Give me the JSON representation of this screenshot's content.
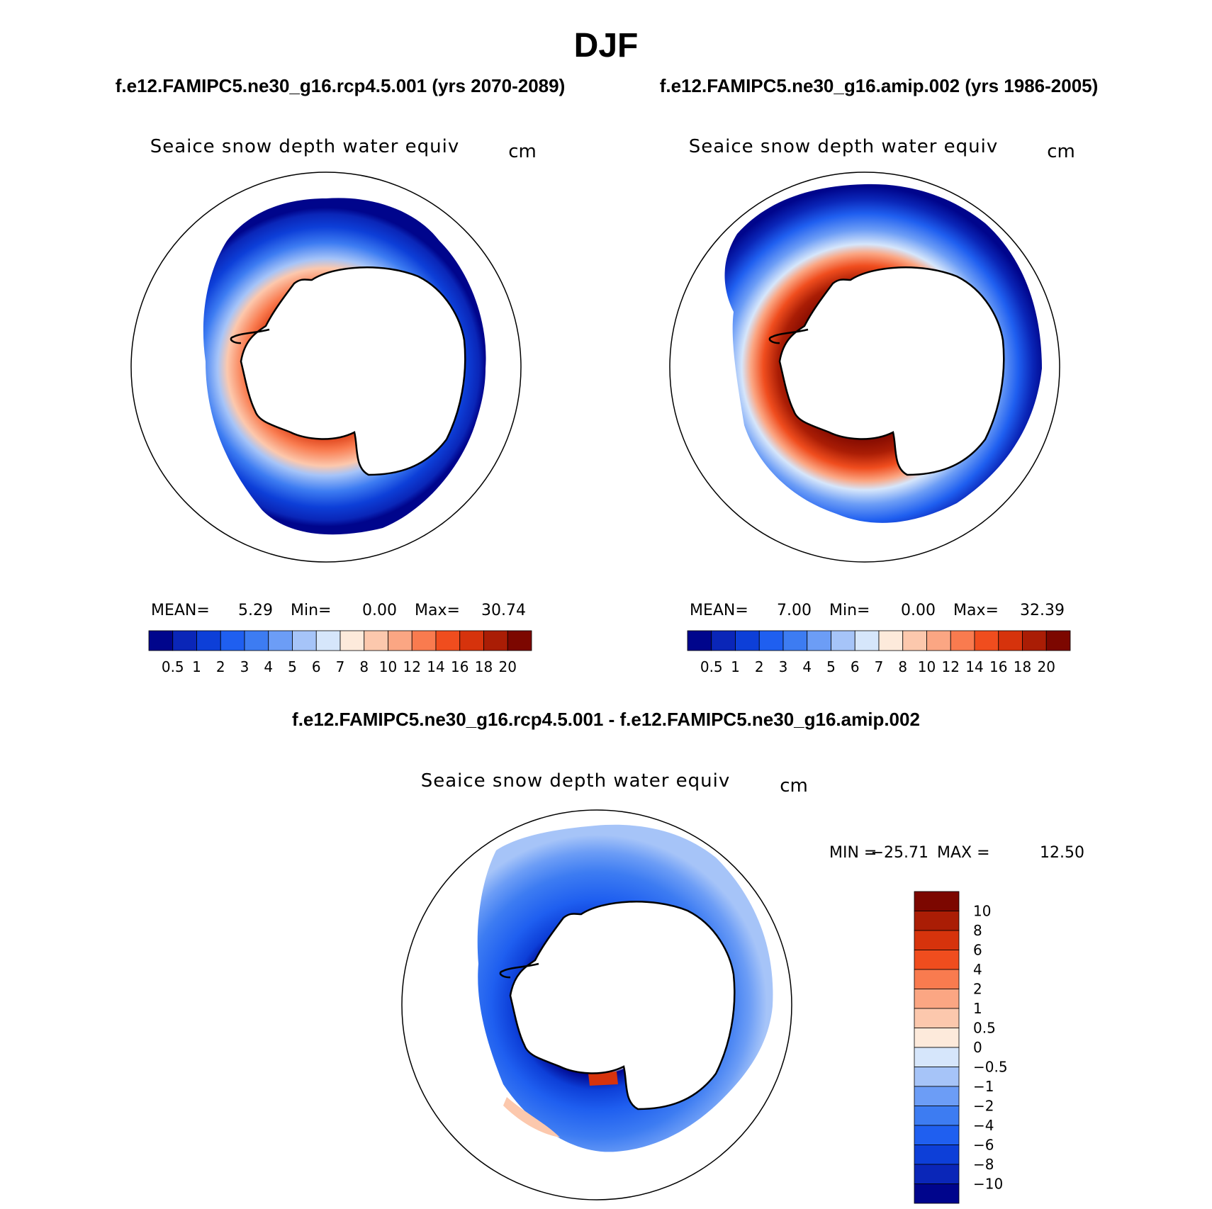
{
  "figure": {
    "title": "DJF",
    "subtitle_left": "f.e12.FAMIPC5.ne30_g16.rcp4.5.001 (yrs 2070-2089)",
    "subtitle_right": "f.e12.FAMIPC5.ne30_g16.amip.002 (yrs 1986-2005)",
    "diff_title": "f.e12.FAMIPC5.ne30_g16.rcp4.5.001 - f.e12.FAMIPC5.ne30_g16.amip.002"
  },
  "chart_data": [
    {
      "type": "heatmap",
      "projection": "south-polar-stereographic",
      "title": "Seaice snow depth water equiv",
      "units": "cm",
      "stats": {
        "mean_label": "MEAN=",
        "mean": "5.29",
        "min_label": "Min=",
        "min": "0.00",
        "max_label": "Max=",
        "max": "30.74"
      },
      "colorbar": {
        "orientation": "horizontal",
        "levels": [
          "0.5",
          "1",
          "2",
          "3",
          "4",
          "5",
          "6",
          "7",
          "8",
          "10",
          "12",
          "14",
          "16",
          "18",
          "20"
        ],
        "colors": [
          "#00058c",
          "#0a26b8",
          "#0d3fd8",
          "#1f5ff0",
          "#3d7cf2",
          "#6c9df6",
          "#a6c4f8",
          "#d6e6fb",
          "#fdeadb",
          "#fcc8ad",
          "#fba683",
          "#f97b4f",
          "#f04d1e",
          "#d6330c",
          "#aa1d05",
          "#7c0700"
        ]
      },
      "field": {
        "ice_edge_relative": 0.93,
        "snow_peak_cm": 16,
        "weddell_sea_cm": 14,
        "ross_sea_cm": 14
      }
    },
    {
      "type": "heatmap",
      "projection": "south-polar-stereographic",
      "title": "Seaice snow depth water equiv",
      "units": "cm",
      "stats": {
        "mean_label": "MEAN=",
        "mean": "7.00",
        "min_label": "Min=",
        "min": "0.00",
        "max_label": "Max=",
        "max": "32.39"
      },
      "colorbar": {
        "orientation": "horizontal",
        "levels": [
          "0.5",
          "1",
          "2",
          "3",
          "4",
          "5",
          "6",
          "7",
          "8",
          "10",
          "12",
          "14",
          "16",
          "18",
          "20"
        ],
        "colors": [
          "#00058c",
          "#0a26b8",
          "#0d3fd8",
          "#1f5ff0",
          "#3d7cf2",
          "#6c9df6",
          "#a6c4f8",
          "#d6e6fb",
          "#fdeadb",
          "#fcc8ad",
          "#fba683",
          "#f97b4f",
          "#f04d1e",
          "#d6330c",
          "#aa1d05",
          "#7c0700"
        ]
      },
      "field": {
        "ice_edge_relative": 1.0,
        "snow_peak_cm": 20,
        "weddell_sea_cm": 20,
        "ross_sea_cm": 18
      }
    },
    {
      "type": "heatmap",
      "projection": "south-polar-stereographic",
      "title": "Seaice snow depth water equiv",
      "units": "cm",
      "stats": {
        "min_label": "MIN =",
        "min": "−25.71",
        "max_label": "MAX =",
        "max": "12.50"
      },
      "colorbar": {
        "orientation": "vertical",
        "levels": [
          "10",
          "8",
          "6",
          "4",
          "2",
          "1",
          "0.5",
          "0",
          "−0.5",
          "−1",
          "−2",
          "−4",
          "−6",
          "−8",
          "−10"
        ],
        "colors": [
          "#7c0700",
          "#aa1d05",
          "#d6330c",
          "#f04d1e",
          "#f97b4f",
          "#fba683",
          "#fcc8ad",
          "#fdeadb",
          "#d6e6fb",
          "#a6c4f8",
          "#6c9df6",
          "#3d7cf2",
          "#1f5ff0",
          "#0d3fd8",
          "#0a26b8",
          "#00058c"
        ]
      },
      "field": {
        "ice_edge_relative": 0.95,
        "near_coast_cm": -8,
        "outer_pack_cm": -2
      }
    }
  ]
}
